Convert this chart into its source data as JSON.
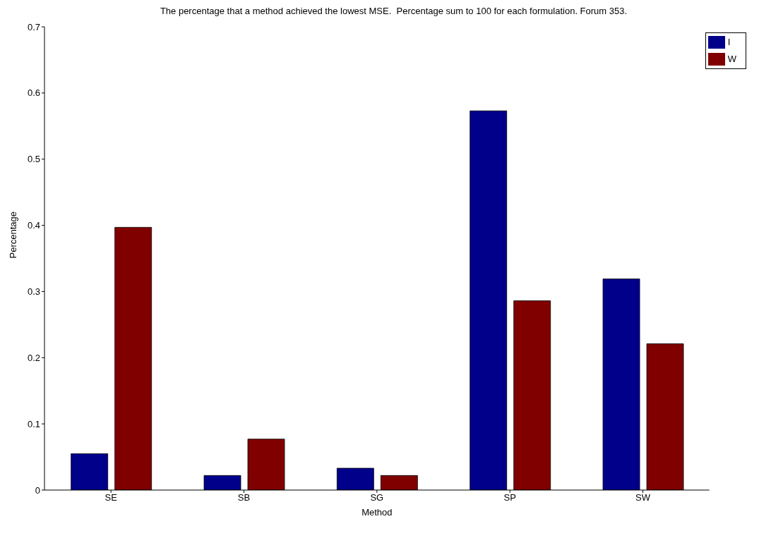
{
  "chart_data": {
    "type": "bar",
    "title": "The percentage that a method achieved the lowest MSE.  Percentage sum to 100 for each formulation. Forum 353.",
    "xlabel": "Method",
    "ylabel": "Percentage",
    "categories": [
      "SE",
      "SB",
      "SG",
      "SP",
      "SW"
    ],
    "series": [
      {
        "name": "I",
        "color": "#00008b",
        "values": [
          0.055,
          0.022,
          0.033,
          0.573,
          0.319
        ]
      },
      {
        "name": "W",
        "color": "#800000",
        "values": [
          0.397,
          0.077,
          0.022,
          0.286,
          0.221
        ]
      }
    ],
    "ylim": [
      0,
      0.7
    ],
    "yticks": [
      0,
      0.1,
      0.2,
      0.3,
      0.4,
      0.5,
      0.6,
      0.7
    ],
    "legend": "top right"
  }
}
